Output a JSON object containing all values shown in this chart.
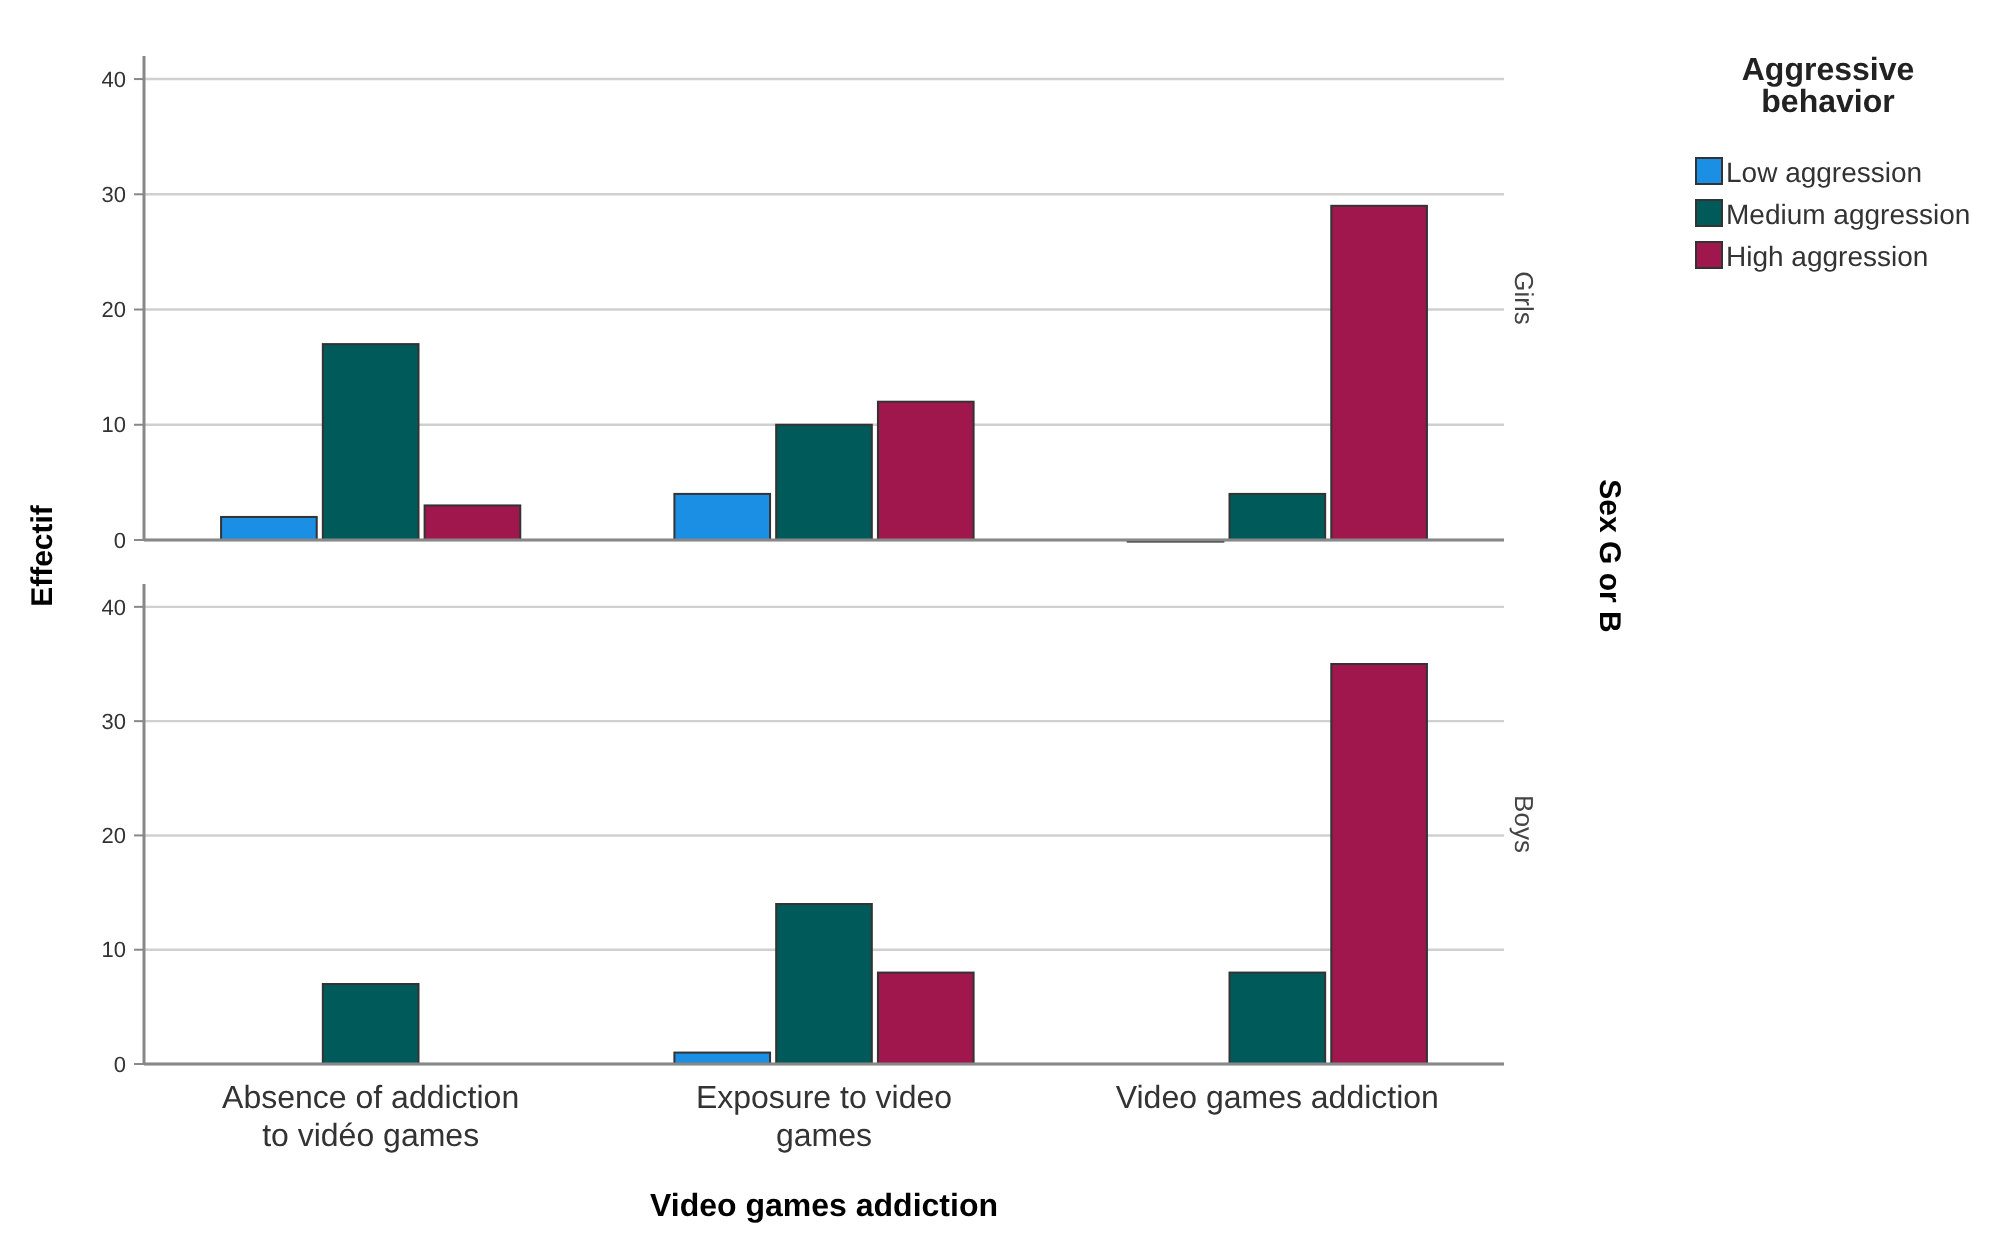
{
  "chart_data": [
    {
      "type": "bar",
      "title": "Girls",
      "ylabel": "Effectif",
      "y2label": "Sex G or B",
      "legend_title": "Aggressive behavior",
      "legend": "right",
      "grid": "y",
      "tick_labels": "y",
      "categories": [
        null,
        null,
        null
      ],
      "ylim": [
        0,
        42
      ],
      "yticks": [
        0,
        10,
        20,
        30,
        40
      ],
      "series": [
        {
          "name": "Low aggression",
          "color": "#1a8fe3",
          "values": [
            2,
            4,
            0
          ]
        },
        {
          "name": "Medium aggression",
          "color": "#005a5a",
          "values": [
            17,
            10,
            4
          ]
        },
        {
          "name": "High aggression",
          "color": "#a0174e",
          "values": [
            3,
            12,
            29
          ]
        }
      ]
    },
    {
      "type": "bar",
      "title": "Boys",
      "xlabel": "Video games addiction",
      "grid": "y",
      "categories": [
        "Absence of addiction to vidéo games",
        "Exposure to video games",
        "Video games addiction"
      ],
      "ylim": [
        0,
        42
      ],
      "yticks": [
        0,
        10,
        20,
        30,
        40
      ],
      "series": [
        {
          "color": "#1a8fe3",
          "values": [
            null,
            1,
            null
          ]
        },
        {
          "color": "#005a5a",
          "values": [
            7,
            14,
            8
          ]
        },
        {
          "color": "#a0174e",
          "values": [
            null,
            8,
            35
          ]
        }
      ]
    }
  ]
}
